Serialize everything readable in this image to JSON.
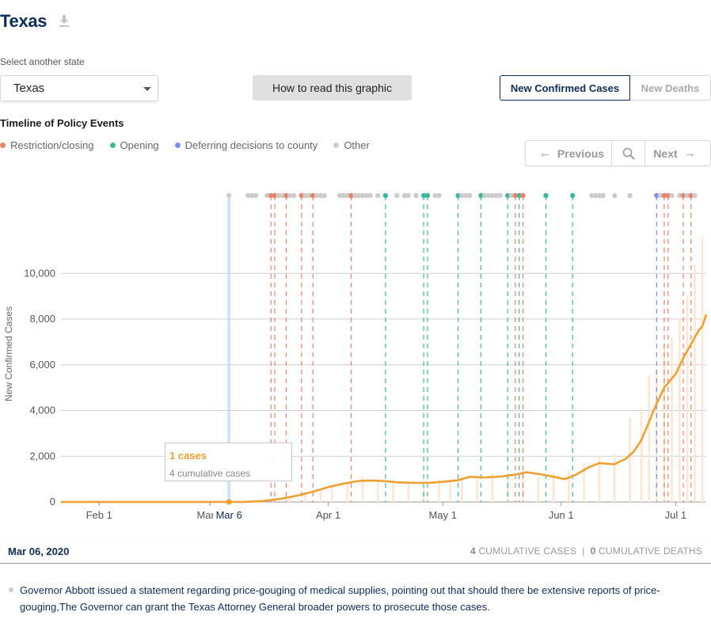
{
  "header": {
    "state_title": "Texas"
  },
  "state_select": {
    "label": "Select another state",
    "value": "Texas"
  },
  "how_to_button": "How to read this graphic",
  "metric_toggle": {
    "active": "New Confirmed Cases",
    "inactive": "New Deaths"
  },
  "timeline": {
    "title": "Timeline of Policy Events",
    "legend": [
      {
        "label": "Restriction/closing",
        "color": "#e8836a"
      },
      {
        "label": "Opening",
        "color": "#3fb99d"
      },
      {
        "label": "Deferring decisions to county",
        "color": "#7c8ef0"
      },
      {
        "label": "Other",
        "color": "#cccccc"
      }
    ],
    "nav": {
      "previous": "Previous",
      "next": "Next"
    }
  },
  "tooltip": {
    "cases": "1 cases",
    "cumulative": "4 cumulative cases"
  },
  "footer": {
    "date": "Mar 06, 2020",
    "cum_cases_num": "4",
    "cum_cases_label": "CUMULATIVE CASES",
    "sep": "|",
    "cum_deaths_num": "0",
    "cum_deaths_label": "CUMULATIVE DEATHS"
  },
  "event_text": "Governor Abbott issued a statement regarding price-gouging of medical supplies, pointing out that should there be extensive reports of price-gouging,The Governor can grant the Texas Attorney General broader powers to prosecute those cases.",
  "chart_data": {
    "type": "line",
    "ylabel": "New Confirmed Cases",
    "ylim": [
      0,
      13300
    ],
    "yticks": [
      0,
      2000,
      4000,
      6000,
      8000,
      10000
    ],
    "ytick_labels": [
      "0",
      "2,000",
      "4,000",
      "6,000",
      "8,000",
      "10,000"
    ],
    "x_start": "2020-01-22",
    "x_end": "2020-07-09",
    "xtick_dates": [
      "2020-02-01",
      "2020-03-01",
      "2020-04-01",
      "2020-05-01",
      "2020-06-01",
      "2020-07-01"
    ],
    "xtick_labels": [
      "Feb 1",
      "Mar 1",
      "Apr 1",
      "May 1",
      "Jun 1",
      "Jul 1"
    ],
    "selected_date": "2020-03-06",
    "selected_label": "Mar 6",
    "selected_value": 1,
    "series": [
      {
        "type": "line",
        "points": [
          [
            "2020-01-22",
            0
          ],
          [
            "2020-03-06",
            1
          ],
          [
            "2020-03-10",
            5
          ],
          [
            "2020-03-15",
            40
          ],
          [
            "2020-03-20",
            150
          ],
          [
            "2020-03-24",
            280
          ],
          [
            "2020-03-28",
            450
          ],
          [
            "2020-04-01",
            650
          ],
          [
            "2020-04-05",
            800
          ],
          [
            "2020-04-09",
            920
          ],
          [
            "2020-04-12",
            940
          ],
          [
            "2020-04-15",
            920
          ],
          [
            "2020-04-19",
            860
          ],
          [
            "2020-04-24",
            830
          ],
          [
            "2020-04-28",
            840
          ],
          [
            "2020-05-01",
            880
          ],
          [
            "2020-05-05",
            950
          ],
          [
            "2020-05-08",
            1100
          ],
          [
            "2020-05-12",
            1070
          ],
          [
            "2020-05-16",
            1110
          ],
          [
            "2020-05-20",
            1200
          ],
          [
            "2020-05-23",
            1300
          ],
          [
            "2020-05-27",
            1200
          ],
          [
            "2020-05-30",
            1100
          ],
          [
            "2020-06-02",
            1000
          ],
          [
            "2020-06-05",
            1200
          ],
          [
            "2020-06-08",
            1500
          ],
          [
            "2020-06-11",
            1700
          ],
          [
            "2020-06-15",
            1650
          ],
          [
            "2020-06-18",
            1900
          ],
          [
            "2020-06-20",
            2200
          ],
          [
            "2020-06-22",
            2700
          ],
          [
            "2020-06-24",
            3500
          ],
          [
            "2020-06-26",
            4300
          ],
          [
            "2020-06-28",
            5000
          ],
          [
            "2020-07-01",
            5600
          ],
          [
            "2020-07-03",
            6300
          ],
          [
            "2020-07-05",
            6900
          ],
          [
            "2020-07-07",
            7500
          ],
          [
            "2020-07-08",
            7700
          ],
          [
            "2020-07-09",
            8200
          ]
        ]
      },
      {
        "type": "bar",
        "points": [
          [
            "2020-03-14",
            40
          ],
          [
            "2020-03-18",
            120
          ],
          [
            "2020-03-22",
            250
          ],
          [
            "2020-03-26",
            380
          ],
          [
            "2020-03-30",
            600
          ],
          [
            "2020-04-02",
            700
          ],
          [
            "2020-04-06",
            850
          ],
          [
            "2020-04-10",
            1100
          ],
          [
            "2020-04-14",
            950
          ],
          [
            "2020-04-18",
            800
          ],
          [
            "2020-04-22",
            900
          ],
          [
            "2020-04-26",
            700
          ],
          [
            "2020-04-30",
            1000
          ],
          [
            "2020-05-03",
            900
          ],
          [
            "2020-05-06",
            1200
          ],
          [
            "2020-05-10",
            1050
          ],
          [
            "2020-05-14",
            1250
          ],
          [
            "2020-05-18",
            1150
          ],
          [
            "2020-05-22",
            1350
          ],
          [
            "2020-05-26",
            1100
          ],
          [
            "2020-05-30",
            1300
          ],
          [
            "2020-06-03",
            1400
          ],
          [
            "2020-06-07",
            1700
          ],
          [
            "2020-06-11",
            2000
          ],
          [
            "2020-06-15",
            2100
          ],
          [
            "2020-06-19",
            3700
          ],
          [
            "2020-06-22",
            4100
          ],
          [
            "2020-06-24",
            5500
          ],
          [
            "2020-06-26",
            5800
          ],
          [
            "2020-06-28",
            6900
          ],
          [
            "2020-06-30",
            7200
          ],
          [
            "2020-07-02",
            8000
          ],
          [
            "2020-07-04",
            9000
          ],
          [
            "2020-07-06",
            10400
          ],
          [
            "2020-07-08",
            11600
          ]
        ]
      }
    ],
    "events": [
      {
        "date": "2020-03-06",
        "type": "other"
      },
      {
        "date": "2020-03-11",
        "type": "other"
      },
      {
        "date": "2020-03-12",
        "type": "other"
      },
      {
        "date": "2020-03-13",
        "type": "other"
      },
      {
        "date": "2020-03-16",
        "type": "other"
      },
      {
        "date": "2020-03-17",
        "type": "restriction"
      },
      {
        "date": "2020-03-18",
        "type": "restriction"
      },
      {
        "date": "2020-03-19",
        "type": "other"
      },
      {
        "date": "2020-03-20",
        "type": "other"
      },
      {
        "date": "2020-03-21",
        "type": "restriction"
      },
      {
        "date": "2020-03-22",
        "type": "other"
      },
      {
        "date": "2020-03-23",
        "type": "other"
      },
      {
        "date": "2020-03-25",
        "type": "restriction"
      },
      {
        "date": "2020-03-26",
        "type": "other"
      },
      {
        "date": "2020-03-27",
        "type": "other"
      },
      {
        "date": "2020-03-28",
        "type": "restriction"
      },
      {
        "date": "2020-03-29",
        "type": "other"
      },
      {
        "date": "2020-03-30",
        "type": "other"
      },
      {
        "date": "2020-03-31",
        "type": "other"
      },
      {
        "date": "2020-04-04",
        "type": "other"
      },
      {
        "date": "2020-04-05",
        "type": "other"
      },
      {
        "date": "2020-04-06",
        "type": "other"
      },
      {
        "date": "2020-04-07",
        "type": "restriction"
      },
      {
        "date": "2020-04-08",
        "type": "other"
      },
      {
        "date": "2020-04-09",
        "type": "other"
      },
      {
        "date": "2020-04-10",
        "type": "other"
      },
      {
        "date": "2020-04-11",
        "type": "other"
      },
      {
        "date": "2020-04-12",
        "type": "other"
      },
      {
        "date": "2020-04-14",
        "type": "other"
      },
      {
        "date": "2020-04-16",
        "type": "opening"
      },
      {
        "date": "2020-04-19",
        "type": "other"
      },
      {
        "date": "2020-04-21",
        "type": "other"
      },
      {
        "date": "2020-04-22",
        "type": "other"
      },
      {
        "date": "2020-04-24",
        "type": "other"
      },
      {
        "date": "2020-04-26",
        "type": "opening"
      },
      {
        "date": "2020-04-27",
        "type": "opening"
      },
      {
        "date": "2020-04-29",
        "type": "other"
      },
      {
        "date": "2020-04-30",
        "type": "other"
      },
      {
        "date": "2020-05-05",
        "type": "opening"
      },
      {
        "date": "2020-05-06",
        "type": "other"
      },
      {
        "date": "2020-05-07",
        "type": "other"
      },
      {
        "date": "2020-05-08",
        "type": "other"
      },
      {
        "date": "2020-05-11",
        "type": "opening"
      },
      {
        "date": "2020-05-12",
        "type": "other"
      },
      {
        "date": "2020-05-13",
        "type": "other"
      },
      {
        "date": "2020-05-14",
        "type": "other"
      },
      {
        "date": "2020-05-15",
        "type": "other"
      },
      {
        "date": "2020-05-16",
        "type": "other"
      },
      {
        "date": "2020-05-18",
        "type": "opening"
      },
      {
        "date": "2020-05-19",
        "type": "other"
      },
      {
        "date": "2020-05-20",
        "type": "restriction"
      },
      {
        "date": "2020-05-21",
        "type": "opening"
      },
      {
        "date": "2020-05-22",
        "type": "restriction"
      },
      {
        "date": "2020-05-28",
        "type": "opening"
      },
      {
        "date": "2020-06-04",
        "type": "opening"
      },
      {
        "date": "2020-06-09",
        "type": "other"
      },
      {
        "date": "2020-06-10",
        "type": "other"
      },
      {
        "date": "2020-06-11",
        "type": "other"
      },
      {
        "date": "2020-06-12",
        "type": "other"
      },
      {
        "date": "2020-06-15",
        "type": "other"
      },
      {
        "date": "2020-06-19",
        "type": "other"
      },
      {
        "date": "2020-06-26",
        "type": "deferring"
      },
      {
        "date": "2020-06-27",
        "type": "other"
      },
      {
        "date": "2020-06-28",
        "type": "restriction"
      },
      {
        "date": "2020-06-29",
        "type": "restriction"
      },
      {
        "date": "2020-06-30",
        "type": "other"
      },
      {
        "date": "2020-07-02",
        "type": "other"
      },
      {
        "date": "2020-07-03",
        "type": "restriction"
      },
      {
        "date": "2020-07-04",
        "type": "other"
      },
      {
        "date": "2020-07-05",
        "type": "restriction"
      },
      {
        "date": "2020-07-06",
        "type": "other"
      }
    ]
  }
}
